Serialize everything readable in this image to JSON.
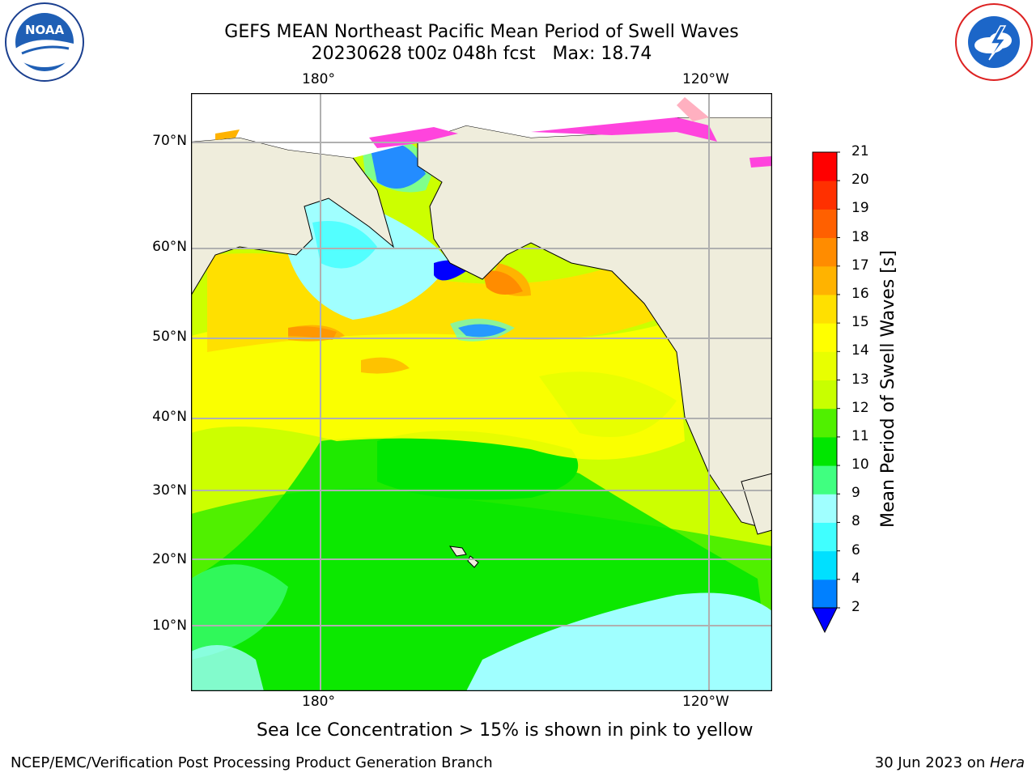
{
  "title": {
    "line1": "GEFS MEAN Northeast Pacific Mean Period of Swell Waves",
    "line2": "20230628 t00z 048h fcst   Max: 18.74"
  },
  "logos": {
    "left": {
      "text": "NOAA",
      "ring_text": "NATIONAL OCEANIC AND ATMOSPHERIC ADMINISTRATION · U.S. DEPARTMENT OF COMMERCE"
    },
    "right": {
      "ring_text": "NATIONAL WEATHER SERVICE"
    }
  },
  "map": {
    "lon_labels_top": [
      "180°",
      "120°W"
    ],
    "lon_labels_bottom": [
      "180°",
      "120°W"
    ],
    "lat_labels": [
      "70°N",
      "60°N",
      "50°N",
      "40°N",
      "30°N",
      "20°N",
      "10°N"
    ],
    "land_color": "#efeddc",
    "grid_color": "#b0b0b0"
  },
  "colorbar": {
    "label": "Mean Period of Swell Waves [s]",
    "ticks": [
      "2",
      "4",
      "6",
      "8",
      "9",
      "10",
      "11",
      "12",
      "13",
      "14",
      "15",
      "16",
      "17",
      "18",
      "19",
      "20",
      "21"
    ],
    "colors": [
      "#0080ff",
      "#00e0ff",
      "#40ffff",
      "#a0ffff",
      "#40ff80",
      "#00e600",
      "#50f000",
      "#c8ff00",
      "#e8ff00",
      "#ffff00",
      "#ffe000",
      "#ffb300",
      "#ff8c00",
      "#ff6000",
      "#ff3000",
      "#ff0000"
    ],
    "under_color": "#0000ff"
  },
  "note": "Sea Ice Concentration > 15% is shown in pink to yellow",
  "footer": {
    "left": "NCEP/EMC/Verification Post Processing Product Generation Branch",
    "right_date": "30 Jun 2023 on ",
    "right_host": "Hera"
  }
}
